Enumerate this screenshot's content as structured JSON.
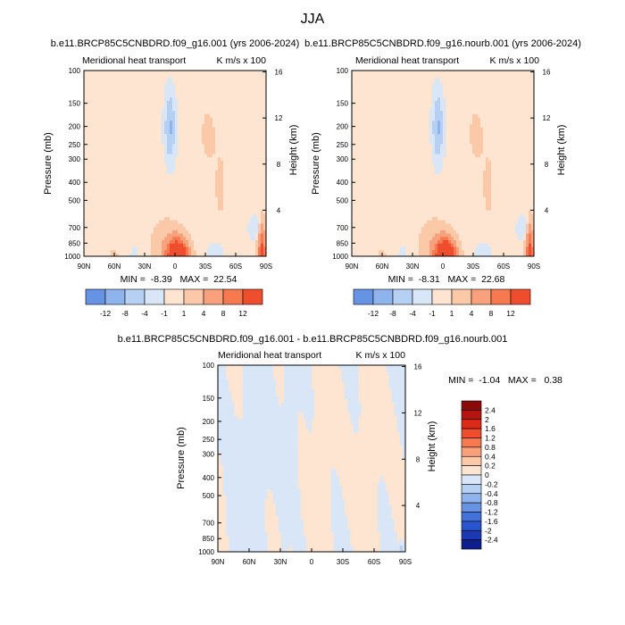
{
  "figure": {
    "title": "JJA",
    "colors": {
      "pos": [
        "#fde5d2",
        "#fbc9a8",
        "#f9a17d",
        "#f6794f",
        "#ef4e2e",
        "#db2a17",
        "#b5150e",
        "#8c0a0a"
      ],
      "neg": [
        "#d8e6f8",
        "#b6d0f3",
        "#8fb3ec",
        "#6793e4",
        "#4272da",
        "#2a54cb",
        "#1b39b3",
        "#0d1f8f"
      ]
    }
  },
  "chart_data": [
    {
      "type": "heatmap",
      "id": "panel1",
      "title": "b.e11.BRCP85C5CNBDRD.f09_g16.001 (yrs 2006-2024)",
      "subtitle_left": "Meridional heat transport",
      "subtitle_right": "K m/s x 100",
      "xlabel": "",
      "ylabel": "Pressure (mb)",
      "ylabel_right": "Height (km)",
      "x_ticks": [
        "90N",
        "60N",
        "30N",
        "0",
        "30S",
        "60S",
        "90S"
      ],
      "x_tick_values": [
        90,
        60,
        30,
        0,
        -30,
        -60,
        -90
      ],
      "xlim": [
        90,
        -90
      ],
      "y_ticks": [
        "100",
        "150",
        "200",
        "250",
        "300",
        "400",
        "500",
        "700",
        "850",
        "1000"
      ],
      "y_tick_values": [
        100,
        150,
        200,
        250,
        300,
        400,
        500,
        700,
        850,
        1000
      ],
      "ylim": [
        1000,
        100
      ],
      "y_scale": "log",
      "y_right_ticks": [
        "4",
        "8",
        "12",
        "16"
      ],
      "y_right_tick_values": [
        4,
        8,
        12,
        16
      ],
      "stats": "MIN =  -8.39   MAX =  22.54",
      "min": -8.39,
      "max": 22.54,
      "levels": [
        -12,
        -8,
        -4,
        -1,
        1,
        4,
        8,
        12
      ],
      "colorbar_labels": [
        "-12",
        "-8",
        "-4",
        "-1",
        "1",
        "4",
        "8",
        "12"
      ],
      "colorbar": "horizontal-below"
    },
    {
      "type": "heatmap",
      "id": "panel2",
      "title": "b.e11.BRCP85C5CNBDRD.f09_g16.nourb.001 (yrs 2006-2024)",
      "subtitle_left": "Meridional heat transport",
      "subtitle_right": "K m/s x 100",
      "xlabel": "",
      "ylabel": "Pressure (mb)",
      "ylabel_right": "Height (km)",
      "x_ticks": [
        "90N",
        "60N",
        "30N",
        "0",
        "30S",
        "60S",
        "90S"
      ],
      "x_tick_values": [
        90,
        60,
        30,
        0,
        -30,
        -60,
        -90
      ],
      "xlim": [
        90,
        -90
      ],
      "y_ticks": [
        "100",
        "150",
        "200",
        "250",
        "300",
        "400",
        "500",
        "700",
        "850",
        "1000"
      ],
      "y_tick_values": [
        100,
        150,
        200,
        250,
        300,
        400,
        500,
        700,
        850,
        1000
      ],
      "ylim": [
        1000,
        100
      ],
      "y_scale": "log",
      "y_right_ticks": [
        "4",
        "8",
        "12",
        "16"
      ],
      "y_right_tick_values": [
        4,
        8,
        12,
        16
      ],
      "stats": "MIN =  -8.31   MAX =  22.68",
      "min": -8.31,
      "max": 22.68,
      "levels": [
        -12,
        -8,
        -4,
        -1,
        1,
        4,
        8,
        12
      ],
      "colorbar_labels": [
        "-12",
        "-8",
        "-4",
        "-1",
        "1",
        "4",
        "8",
        "12"
      ],
      "colorbar": "horizontal-below"
    },
    {
      "type": "heatmap",
      "id": "panel3",
      "title": "b.e11.BRCP85C5CNBDRD.f09_g16.001 - b.e11.BRCP85C5CNBDRD.f09_g16.nourb.001",
      "subtitle_left": "Meridional heat transport",
      "subtitle_right": "K m/s x 100",
      "xlabel": "",
      "ylabel": "Pressure (mb)",
      "ylabel_right": "Height (km)",
      "x_ticks": [
        "90N",
        "60N",
        "30N",
        "0",
        "30S",
        "60S",
        "90S"
      ],
      "x_tick_values": [
        90,
        60,
        30,
        0,
        -30,
        -60,
        -90
      ],
      "xlim": [
        90,
        -90
      ],
      "y_ticks": [
        "100",
        "150",
        "200",
        "250",
        "300",
        "400",
        "500",
        "700",
        "850",
        "1000"
      ],
      "y_tick_values": [
        100,
        150,
        200,
        250,
        300,
        400,
        500,
        700,
        850,
        1000
      ],
      "ylim": [
        1000,
        100
      ],
      "y_scale": "log",
      "y_right_ticks": [
        "4",
        "8",
        "12",
        "16"
      ],
      "y_right_tick_values": [
        4,
        8,
        12,
        16
      ],
      "stats": "MIN =  -1.04   MAX =   0.38",
      "min": -1.04,
      "max": 0.38,
      "levels": [
        -2.4,
        -2,
        -1.6,
        -1.2,
        -0.8,
        -0.4,
        -0.2,
        0,
        0.2,
        0.4,
        0.8,
        1.2,
        1.6,
        2,
        2.4
      ],
      "colorbar_labels": [
        "2.4",
        "2",
        "1.6",
        "1.2",
        "0.8",
        "0.4",
        "0.2",
        "0",
        "-0.2",
        "-0.4",
        "-0.8",
        "-1.2",
        "-1.6",
        "-2",
        "-2.4"
      ],
      "colorbar": "vertical-right"
    }
  ]
}
